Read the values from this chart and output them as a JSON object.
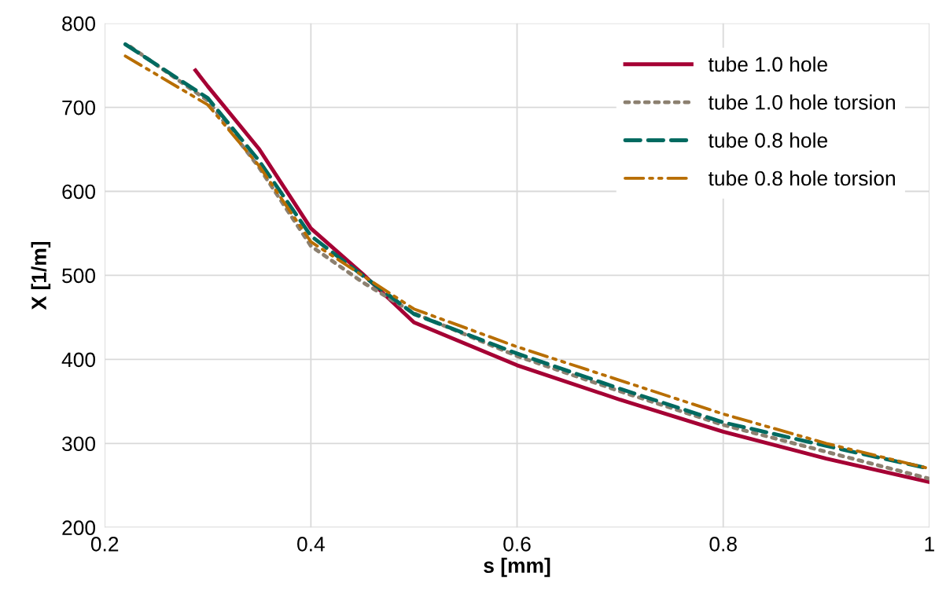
{
  "chart_data": {
    "type": "line",
    "xlabel": "s [mm]",
    "ylabel": "X [1/m]",
    "xlim": [
      0.2,
      1
    ],
    "xticks": [
      0.2,
      0.4,
      0.6,
      0.8,
      1
    ],
    "ylim": [
      200,
      800
    ],
    "yticks": [
      200,
      300,
      400,
      500,
      600,
      700,
      800
    ],
    "grid": true,
    "legend": "top right",
    "marker": "none",
    "series": [
      {
        "name": "tube 1.0 hole",
        "color": "#a50034",
        "line_style": "solid",
        "x": [
          0.288,
          0.3,
          0.35,
          0.4,
          0.45,
          0.5,
          0.6,
          0.7,
          0.8,
          0.9,
          1.0
        ],
        "values": [
          744,
          725,
          650,
          556,
          502,
          444,
          393,
          352,
          314,
          282,
          254
        ]
      },
      {
        "name": "tube 1.0 hole torsion",
        "color": "#8c8070",
        "line_style": "dotted",
        "x": [
          0.225,
          0.3,
          0.35,
          0.4,
          0.45,
          0.5,
          0.6,
          0.7,
          0.8,
          0.9,
          1.0
        ],
        "values": [
          772,
          708,
          628,
          535,
          492,
          455,
          404,
          362,
          322,
          290,
          258
        ]
      },
      {
        "name": "tube 0.8 hole",
        "color": "#006a60",
        "line_style": "dashed",
        "x": [
          0.22,
          0.3,
          0.35,
          0.4,
          0.45,
          0.5,
          0.6,
          0.7,
          0.8,
          0.9,
          1.0
        ],
        "values": [
          775,
          711,
          636,
          547,
          500,
          454,
          407,
          365,
          325,
          297,
          270
        ]
      },
      {
        "name": "tube 0.8 hole torsion",
        "color": "#b86e00",
        "line_style": "dashdot",
        "x": [
          0.22,
          0.3,
          0.35,
          0.4,
          0.45,
          0.5,
          0.6,
          0.7,
          0.8,
          0.9,
          1.0
        ],
        "values": [
          761,
          703,
          630,
          540,
          500,
          460,
          415,
          375,
          335,
          300,
          270
        ]
      }
    ]
  }
}
